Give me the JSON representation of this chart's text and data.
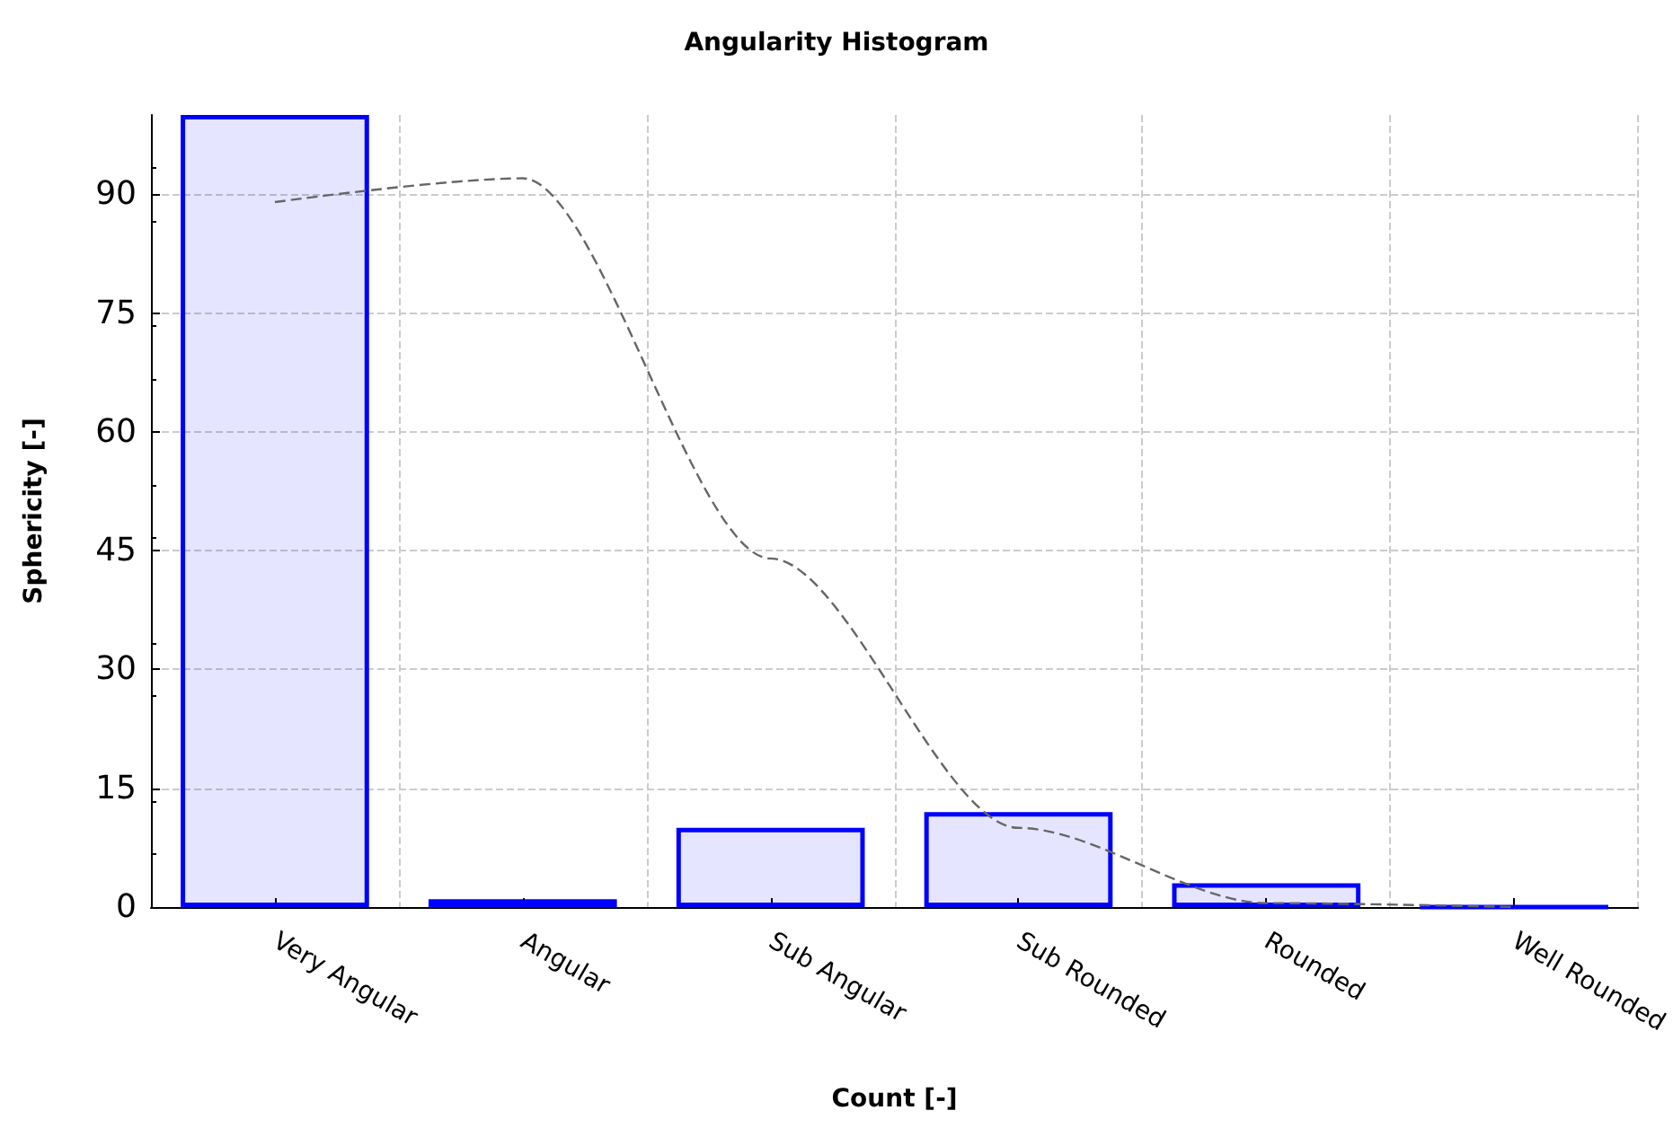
{
  "chart_data": {
    "type": "bar",
    "title": "Angularity Histogram",
    "xlabel": "Count [-]",
    "ylabel": "Sphericity [-]",
    "categories": [
      "Very Angular",
      "Angular",
      "Sub Angular",
      "Sub Rounded",
      "Rounded",
      "Well Rounded"
    ],
    "series": [
      {
        "color": "#0000ff",
        "values": [
          100,
          1,
          10,
          12,
          3,
          0
        ]
      },
      {
        "type": "line",
        "color": "#666666",
        "line_style": "dashed",
        "marker": "none",
        "values": [
          89,
          92,
          44,
          10,
          0.5,
          0
        ]
      }
    ],
    "ylim": [
      0,
      100
    ],
    "yticks": [
      0,
      15,
      30,
      45,
      60,
      75,
      90
    ],
    "grid": true
  }
}
